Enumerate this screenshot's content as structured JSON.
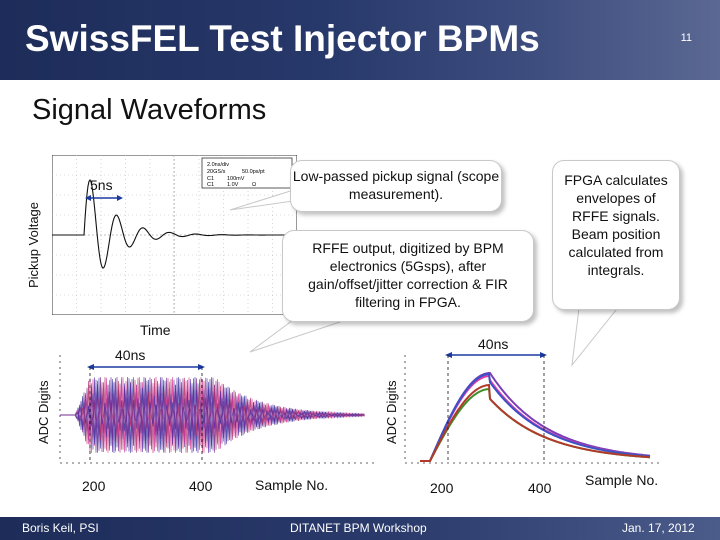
{
  "header": {
    "title": "SwissFEL Test Injector BPMs",
    "page_number": "11"
  },
  "subtitle": "Signal Waveforms",
  "scope_plot": {
    "ylabel": "Pickup Voltage",
    "xlabel": "Time",
    "span_label": "5ns",
    "readout": [
      "2.0ns/div",
      "20GS/s",
      "50.0ps/pt",
      "C1",
      "100mV",
      "C1",
      "1.0V",
      "Ω"
    ]
  },
  "raw_plot": {
    "ylabel": "ADC Digits",
    "span_label": "40ns",
    "xticks": [
      "200",
      "400"
    ],
    "xlabel": "Sample No."
  },
  "envelope_plot": {
    "ylabel": "ADC Digits",
    "span_label": "40ns",
    "xticks": [
      "200",
      "400"
    ],
    "xlabel": "Sample No."
  },
  "callouts": {
    "scope": "Low-passed pickup signal (scope measurement).",
    "rffe": "RFFE output, digitized by BPM electronics (5Gsps), after gain/offset/jitter correction & FIR filtering in FPGA.",
    "fpga": "FPGA calculates envelopes of RFFE signals. Beam position calculated from integrals."
  },
  "footer": {
    "author": "Boris Keil, PSI",
    "event": "DITANET BPM Workshop",
    "date": "Jan. 17, 2012"
  },
  "colors": {
    "header_bg": "#27386a",
    "envelope_series": [
      "#7b3fb5",
      "#e23aa6",
      "#3a52c8",
      "#3f8f2a",
      "#b23a2a"
    ]
  }
}
